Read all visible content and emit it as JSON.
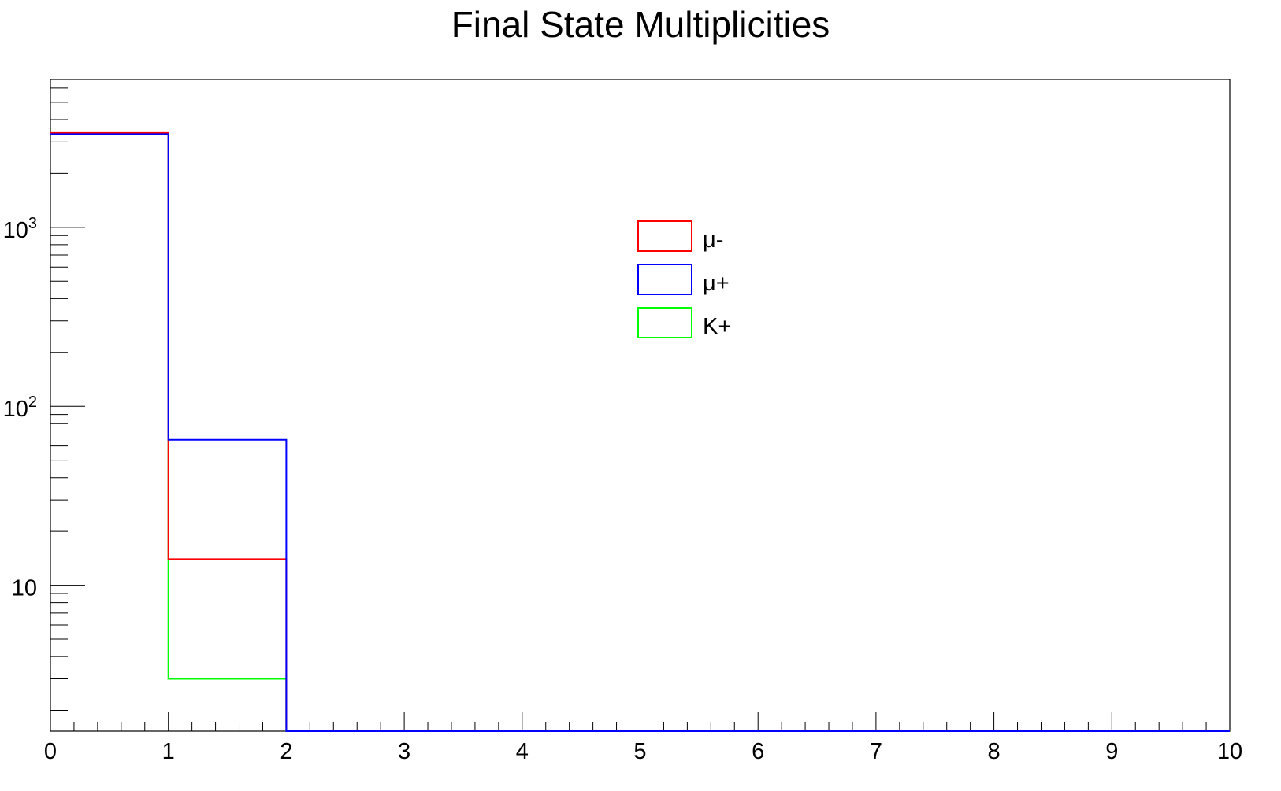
{
  "chart_data": {
    "type": "histogram",
    "title": "Final State Multiplicities",
    "xlabel": "",
    "ylabel": "",
    "xlim": [
      0,
      10
    ],
    "ylim": [
      1.53,
      6700
    ],
    "y_scale": "log",
    "grid": false,
    "legend_position": "top-center",
    "bin_edges": [
      0,
      1,
      2,
      3,
      4,
      5,
      6,
      7,
      8,
      9,
      10
    ],
    "x_tick_labels": [
      "0",
      "1",
      "2",
      "3",
      "4",
      "5",
      "6",
      "7",
      "8",
      "9",
      "10"
    ],
    "y_tick_labels": [
      {
        "value": 10,
        "base": "10",
        "exp": ""
      },
      {
        "value": 100,
        "base": "10",
        "exp": "2"
      },
      {
        "value": 1000,
        "base": "10",
        "exp": "3"
      }
    ],
    "series": [
      {
        "name": "μ-",
        "color": "#ff0000",
        "values": [
          3370,
          14,
          0,
          0,
          0,
          0,
          0,
          0,
          0,
          0
        ]
      },
      {
        "name": "μ+",
        "color": "#0000ff",
        "values": [
          3320,
          65,
          0,
          0,
          0,
          0,
          0,
          0,
          0,
          0
        ]
      },
      {
        "name": "K+",
        "color": "#00ff00",
        "values": [
          3300,
          3,
          0,
          0,
          0,
          0,
          0,
          0,
          0,
          0
        ]
      }
    ],
    "draw_order": [
      2,
      0,
      1
    ]
  }
}
